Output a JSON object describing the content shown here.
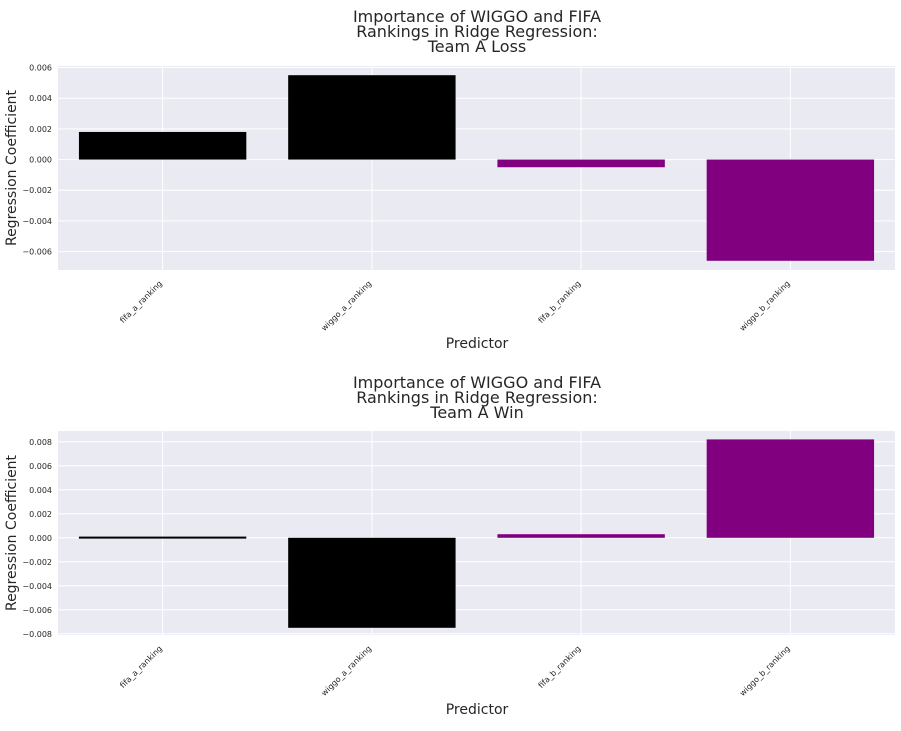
{
  "chart_data": [
    {
      "type": "bar",
      "title": "Importance of WIGGO and FIFA\nRankings in Ridge Regression:\nTeam A Loss",
      "xlabel": "Predictor",
      "ylabel": "Regression Coefficient",
      "categories": [
        "fifa_a_ranking",
        "wiggo_a_ranking",
        "fifa_b_ranking",
        "wiggo_b_ranking"
      ],
      "values": [
        0.0018,
        0.0055,
        -0.0005,
        -0.0066
      ],
      "bar_colors": [
        "#000000",
        "#000000",
        "#800080",
        "#800080"
      ],
      "ylim": [
        -0.0072,
        0.0061
      ],
      "yticks": [
        -0.006,
        -0.004,
        -0.002,
        0.0,
        0.002,
        0.004,
        0.006
      ],
      "ytick_labels": [
        "−0.006",
        "−0.004",
        "−0.002",
        "0.000",
        "0.002",
        "0.004",
        "0.006"
      ],
      "grid": true,
      "background": "#eaeaf2"
    },
    {
      "type": "bar",
      "title": "Importance of WIGGO and FIFA\nRankings in Ridge Regression:\nTeam A Win",
      "xlabel": "Predictor",
      "ylabel": "Regression Coefficient",
      "categories": [
        "fifa_a_ranking",
        "wiggo_a_ranking",
        "fifa_b_ranking",
        "wiggo_b_ranking"
      ],
      "values": [
        0.0001,
        -0.0075,
        0.0003,
        0.0082
      ],
      "bar_colors": [
        "#000000",
        "#000000",
        "#800080",
        "#800080"
      ],
      "ylim": [
        -0.0081,
        0.0089
      ],
      "yticks": [
        -0.008,
        -0.006,
        -0.004,
        -0.002,
        0.0,
        0.002,
        0.004,
        0.006,
        0.008
      ],
      "ytick_labels": [
        "−0.008",
        "−0.006",
        "−0.004",
        "−0.002",
        "0.000",
        "0.002",
        "0.004",
        "0.006",
        "0.008"
      ],
      "grid": true,
      "background": "#eaeaf2"
    }
  ]
}
